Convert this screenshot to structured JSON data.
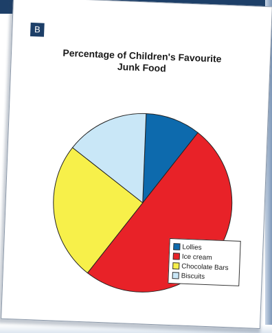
{
  "badge": "B",
  "chart_data": {
    "type": "pie",
    "title_line1": "Percentage of Children's Favourite",
    "title_line2": "Junk Food",
    "categories": [
      "Lollies",
      "Ice cream",
      "Chocolate Bars",
      "Biscuits"
    ],
    "values": [
      10,
      50,
      25,
      15
    ],
    "colors": [
      "#0d6aad",
      "#e82228",
      "#f7f04a",
      "#c9e7f7"
    ],
    "legend_position": "bottom-right"
  }
}
